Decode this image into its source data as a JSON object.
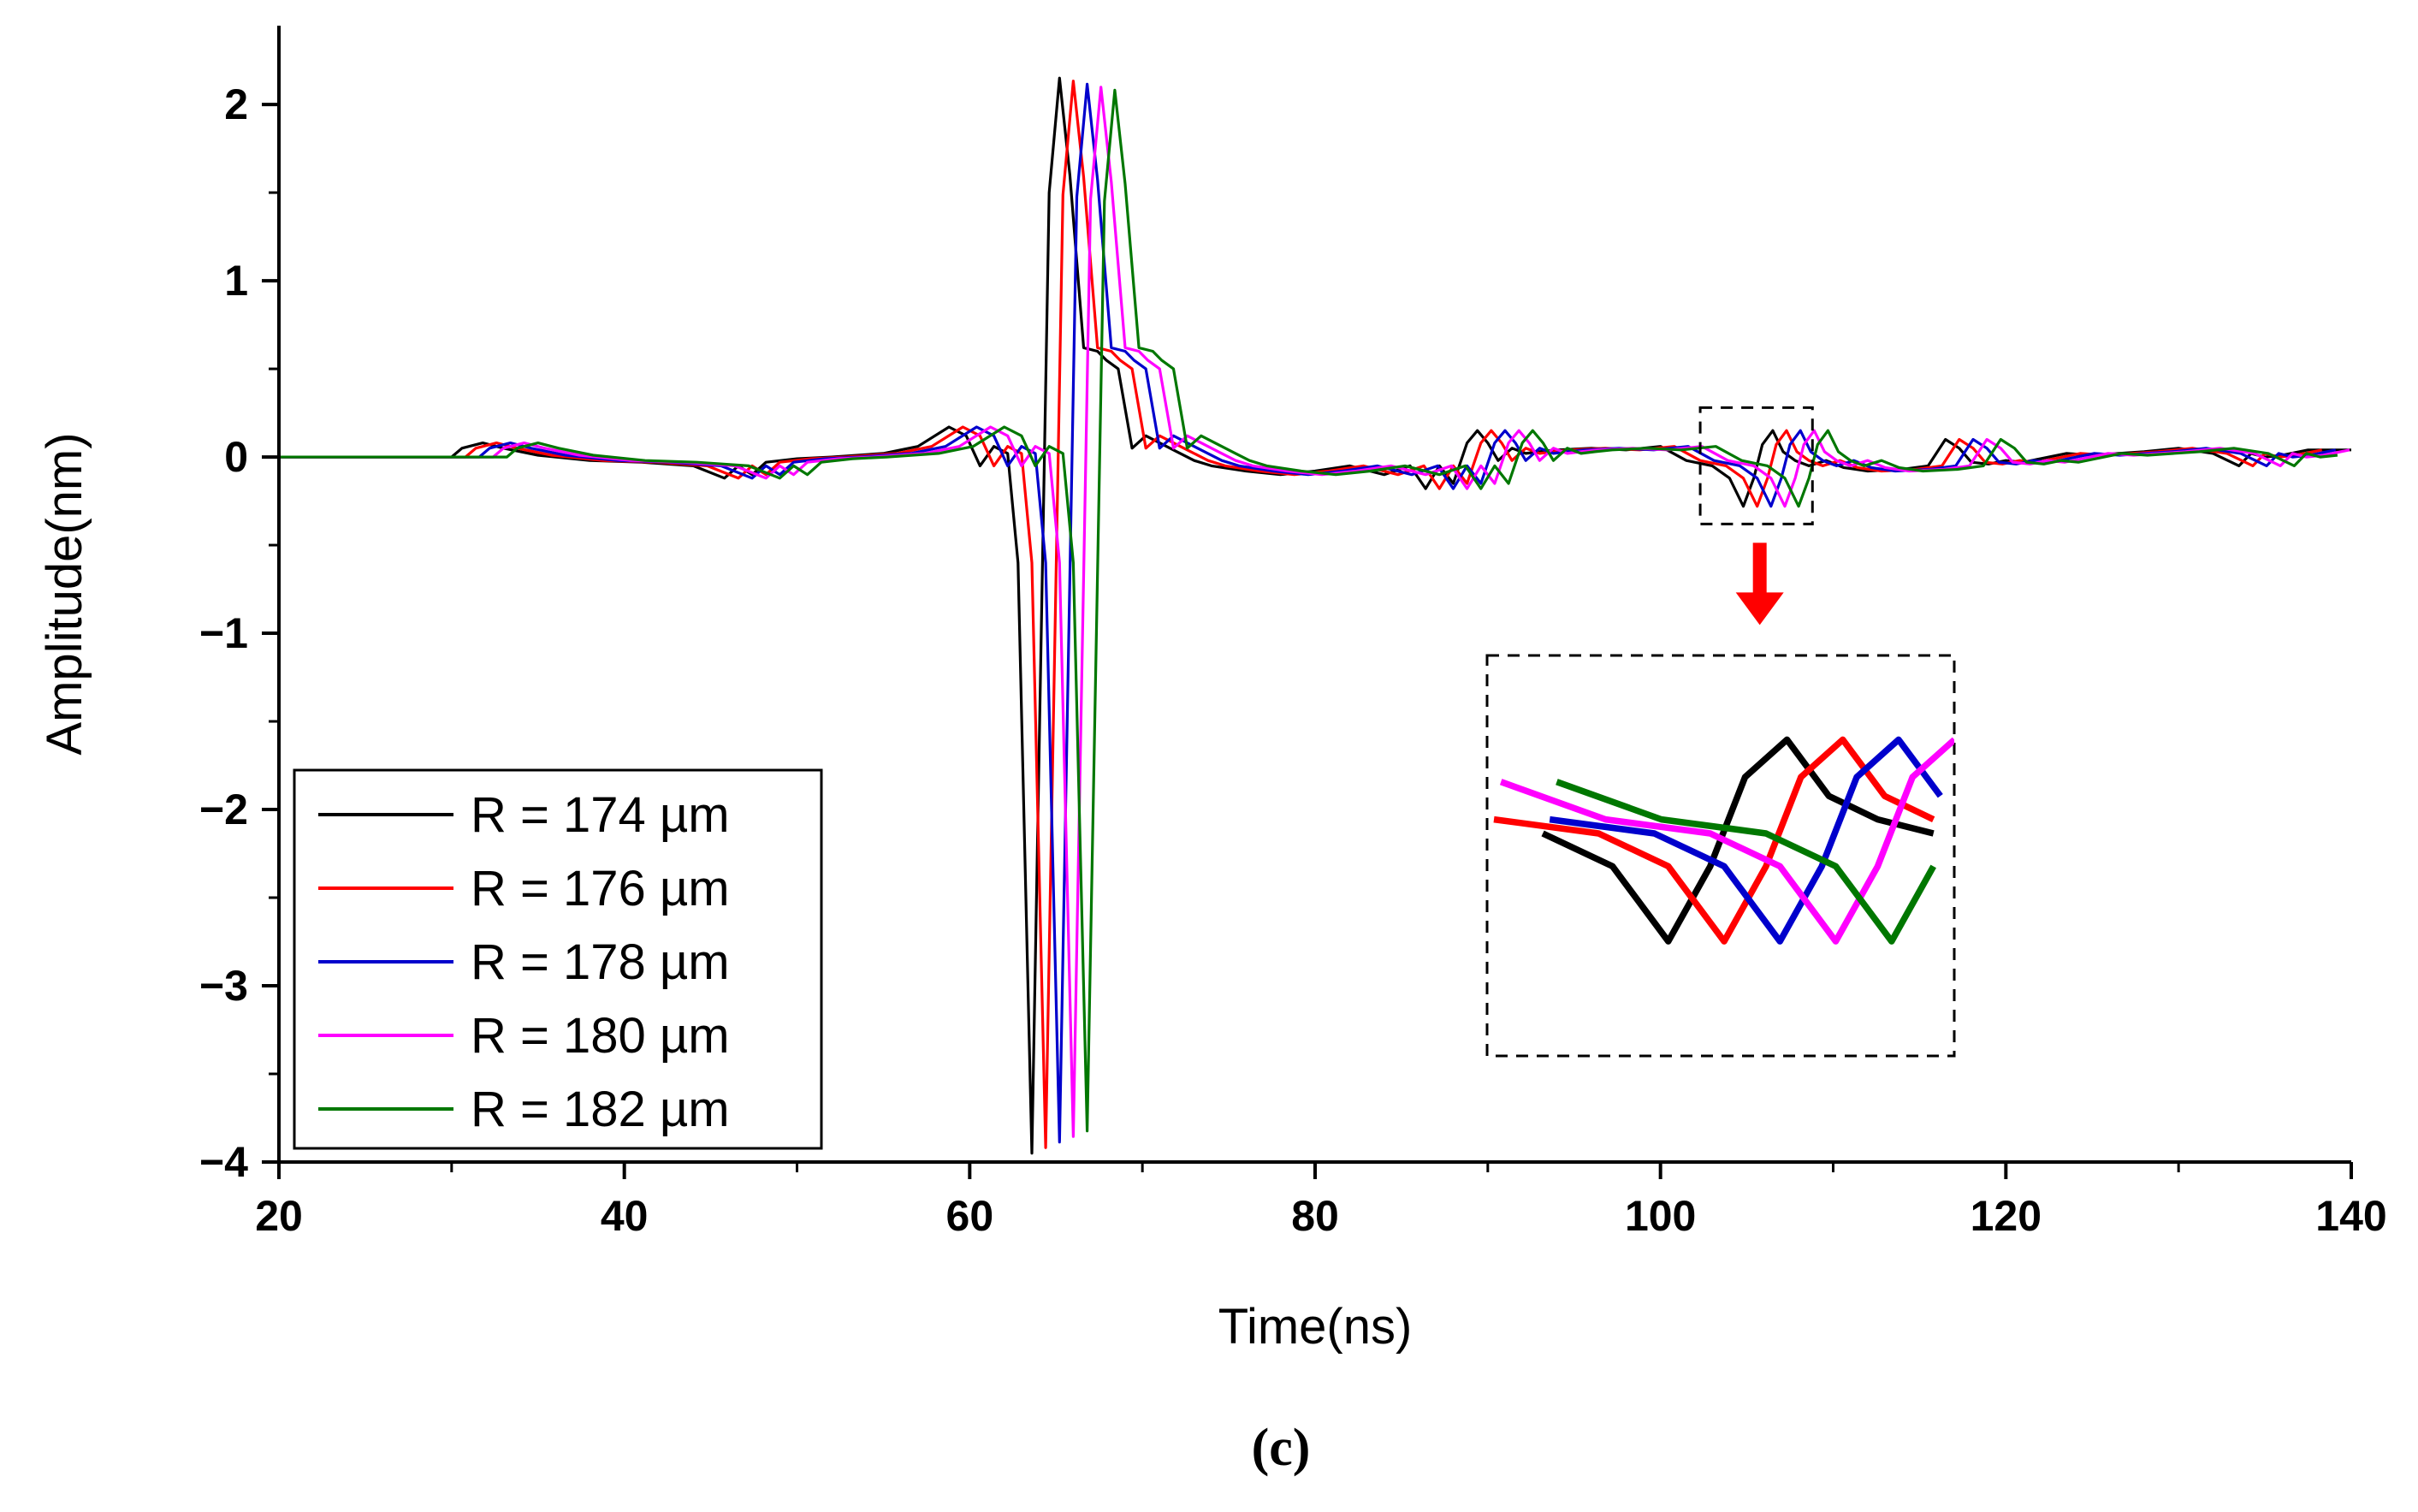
{
  "chart_data": {
    "type": "line",
    "title": "",
    "caption": "(c)",
    "xlabel": "Time(ns)",
    "ylabel": "Amplitude(nm)",
    "xlim": [
      20,
      140
    ],
    "ylim": [
      -4,
      2.35
    ],
    "xticks": [
      20,
      40,
      60,
      80,
      100,
      120,
      140
    ],
    "xtick_labels": [
      "20",
      "40",
      "60",
      "80",
      "100",
      "120",
      "140"
    ],
    "yticks": [
      -4,
      -3,
      -2,
      -1,
      0,
      1,
      2
    ],
    "ytick_labels": [
      "−4",
      "−3",
      "−2",
      "−1",
      "0",
      "1",
      "2"
    ],
    "legend_position": "lower-left",
    "series": [
      {
        "name": "R = 174 µm",
        "color": "#000000",
        "shift": 0.0
      },
      {
        "name": "R = 176 µm",
        "color": "#ff0000",
        "shift": 0.8
      },
      {
        "name": "R = 178 µm",
        "color": "#0000cc",
        "shift": 1.6
      },
      {
        "name": "R = 180 µm",
        "color": "#ff00ff",
        "shift": 2.4
      },
      {
        "name": "R = 182 µm",
        "color": "#007700",
        "shift": 3.2
      }
    ],
    "base_waveform": {
      "x": [
        20,
        30,
        30.6,
        31.8,
        33,
        35,
        38,
        41,
        44,
        45.8,
        46.6,
        47.4,
        48.2,
        50,
        52,
        55,
        57,
        58.8,
        59.8,
        60.6,
        61.4,
        62.2,
        62.8,
        63.6,
        64.6,
        65.2,
        65.8,
        66.6,
        67.4,
        67.9,
        68.6,
        69.4,
        70.2,
        71,
        72,
        73,
        74,
        76,
        78,
        80,
        82,
        84,
        85.5,
        86.4,
        87.2,
        88,
        88.8,
        89.4,
        90,
        90.6,
        91.4,
        92.2,
        93,
        94,
        96,
        98,
        100,
        101.5,
        103,
        104,
        104.8,
        105.4,
        105.9,
        106.5,
        107.1,
        107.8,
        108.6,
        109.6,
        110.6,
        112,
        114,
        115.5,
        116.5,
        117.3,
        118,
        119,
        120,
        121,
        122,
        123.5,
        125,
        128,
        130,
        132,
        133.5,
        134.2,
        135,
        136,
        137.5,
        140
      ],
      "y": [
        0,
        0,
        0.05,
        0.08,
        0.05,
        0.01,
        -0.02,
        -0.03,
        -0.05,
        -0.12,
        -0.05,
        -0.1,
        -0.03,
        -0.01,
        0,
        0.02,
        0.06,
        0.17,
        0.12,
        -0.05,
        0.06,
        0.02,
        -0.6,
        -3.95,
        1.5,
        2.15,
        1.6,
        0.62,
        0.6,
        0.55,
        0.5,
        0.05,
        0.12,
        0.08,
        0.03,
        -0.02,
        -0.05,
        -0.08,
        -0.1,
        -0.08,
        -0.05,
        -0.1,
        -0.05,
        -0.18,
        -0.05,
        -0.15,
        0.08,
        0.15,
        0.08,
        -0.02,
        0.05,
        0.02,
        0.03,
        0.04,
        0.05,
        0.04,
        0.06,
        -0.02,
        -0.05,
        -0.12,
        -0.28,
        -0.12,
        0.07,
        0.15,
        0.03,
        -0.02,
        -0.05,
        -0.02,
        -0.06,
        -0.08,
        -0.07,
        -0.05,
        0.1,
        0.05,
        -0.03,
        -0.04,
        -0.02,
        -0.03,
        -0.01,
        0.02,
        0.01,
        0.03,
        0.05,
        0.02,
        -0.05,
        0.02,
        0.0,
        0.01,
        0.04,
        0.04
      ]
    },
    "annotations": {
      "inset_source_x": [
        102.3,
        108.8
      ],
      "inset_source_y": [
        -0.38,
        0.28
      ],
      "inset_description": "magnified view of the reflected pulse"
    }
  },
  "colors": {
    "axis": "#000000",
    "arrow": "#ff0000",
    "box": "#000000"
  }
}
